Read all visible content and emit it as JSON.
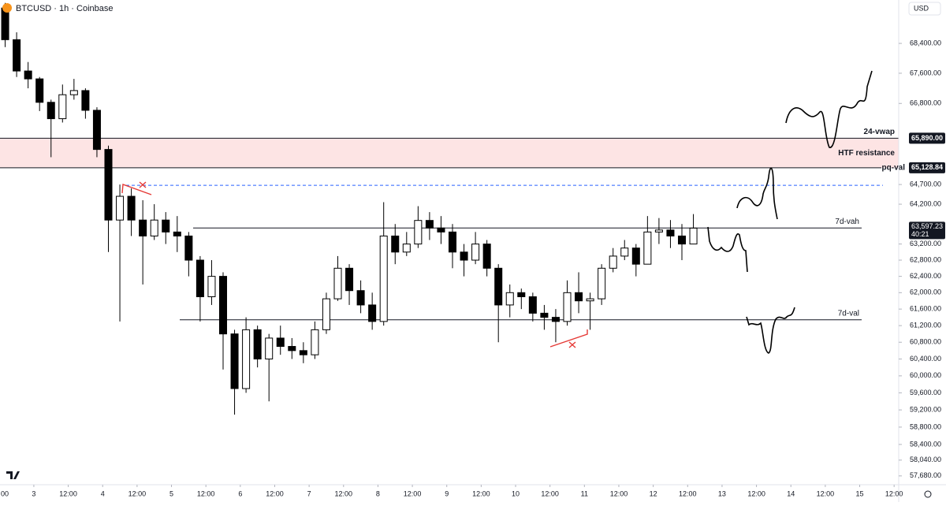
{
  "chart_data": {
    "type": "candlestick",
    "title": "BTCUSD · 1h · Coinbase",
    "currency": "USD",
    "x": [
      -12,
      -8,
      -4,
      0,
      4,
      8,
      12,
      16,
      20,
      24,
      28,
      32,
      36,
      40,
      44,
      48,
      52,
      56,
      60,
      64,
      68,
      72,
      76,
      80,
      84,
      88,
      92,
      96,
      100,
      104,
      108,
      112,
      116,
      120,
      124,
      128,
      132,
      136,
      140,
      144,
      148,
      152,
      156,
      160,
      164,
      168,
      172,
      176,
      180,
      184,
      188,
      192,
      196,
      200,
      204,
      208,
      212,
      216,
      220,
      224,
      228
    ],
    "open": [
      69360,
      68500,
      67660,
      67450,
      66830,
      66400,
      67030,
      67140,
      66620,
      65600,
      63800,
      64400,
      63800,
      63400,
      63800,
      63500,
      63400,
      62800,
      61900,
      62400,
      61000,
      59700,
      61100,
      60400,
      60900,
      60700,
      60600,
      60500,
      61100,
      61850,
      62600,
      62050,
      61700,
      61300,
      63400,
      63000,
      63200,
      63790,
      63600,
      63500,
      63000,
      62800,
      63200,
      62600,
      61700,
      62000,
      61900,
      61500,
      61400,
      61300,
      62000,
      61800,
      61850,
      62600,
      62900,
      63100,
      62700,
      63500,
      63550,
      63400,
      63200
    ],
    "high": [
      69500,
      68700,
      67900,
      67500,
      66900,
      67300,
      67450,
      67200,
      66700,
      65700,
      64700,
      64600,
      64300,
      64200,
      64000,
      63900,
      63500,
      62900,
      62800,
      62500,
      61100,
      61400,
      61200,
      61000,
      61200,
      60900,
      60800,
      61300,
      62000,
      62900,
      62700,
      62300,
      62000,
      64250,
      63700,
      63500,
      64150,
      64000,
      63900,
      63700,
      63200,
      63500,
      63300,
      62700,
      62200,
      62100,
      62000,
      61700,
      61600,
      62300,
      62500,
      62000,
      62700,
      63100,
      63300,
      63200,
      63900,
      63850,
      63800,
      63700,
      63950
    ],
    "low": [
      68300,
      67500,
      67200,
      66600,
      65400,
      66300,
      66900,
      66400,
      65400,
      63000,
      61300,
      63400,
      62200,
      63300,
      63200,
      63000,
      62400,
      61300,
      61700,
      60150,
      59090,
      59600,
      60200,
      59400,
      60500,
      60400,
      60300,
      60400,
      61000,
      61800,
      61700,
      61500,
      61100,
      61200,
      62700,
      62900,
      63100,
      63300,
      63200,
      62600,
      62400,
      62700,
      62400,
      60800,
      61400,
      61600,
      61300,
      61100,
      60800,
      61200,
      61500,
      61100,
      61700,
      62500,
      62800,
      62400,
      62700,
      63200,
      63100,
      62800,
      63300
    ],
    "close": [
      68500,
      67660,
      67450,
      66830,
      66400,
      67030,
      67140,
      66620,
      65600,
      63800,
      64400,
      63800,
      63400,
      63800,
      63500,
      63400,
      62800,
      61900,
      62400,
      61000,
      59700,
      61100,
      60400,
      60900,
      60700,
      60600,
      60500,
      61100,
      61850,
      62600,
      62050,
      61700,
      61300,
      63400,
      63000,
      63200,
      63790,
      63600,
      63500,
      63000,
      62800,
      63200,
      62600,
      61700,
      62000,
      61900,
      61500,
      61400,
      61300,
      62000,
      61800,
      61850,
      62600,
      62900,
      63100,
      62700,
      63500,
      63550,
      63400,
      63200,
      63597.23
    ],
    "up_color": "#ffffff",
    "down_color": "#000000",
    "wick_color": "#000000",
    "xlim": [
      -11.8,
      301.6
    ],
    "xticks": [
      {
        "value": -12,
        "label": "00"
      },
      {
        "value": 0,
        "label": "3"
      },
      {
        "value": 12,
        "label": "12:00"
      },
      {
        "value": 24,
        "label": "4"
      },
      {
        "value": 36,
        "label": "12:00"
      },
      {
        "value": 48,
        "label": "5"
      },
      {
        "value": 60,
        "label": "12:00"
      },
      {
        "value": 72,
        "label": "6"
      },
      {
        "value": 84,
        "label": "12:00"
      },
      {
        "value": 96,
        "label": "7"
      },
      {
        "value": 108,
        "label": "12:00"
      },
      {
        "value": 120,
        "label": "8"
      },
      {
        "value": 132,
        "label": "12:00"
      },
      {
        "value": 144,
        "label": "9"
      },
      {
        "value": 156,
        "label": "12:00"
      },
      {
        "value": 168,
        "label": "10"
      },
      {
        "value": 180,
        "label": "12:00"
      },
      {
        "value": 192,
        "label": "11"
      },
      {
        "value": 204,
        "label": "12:00"
      },
      {
        "value": 216,
        "label": "12"
      },
      {
        "value": 228,
        "label": "12:00"
      },
      {
        "value": 240,
        "label": "13"
      },
      {
        "value": 252,
        "label": "12:00"
      },
      {
        "value": 264,
        "label": "14"
      },
      {
        "value": 276,
        "label": "12:00"
      },
      {
        "value": 288,
        "label": "15"
      },
      {
        "value": 300,
        "label": "12:00"
      }
    ],
    "ylim": [
      57480,
      69580
    ],
    "log_scale": true,
    "grid": false,
    "yticks": [
      {
        "value": 68400,
        "label": "68,400.00"
      },
      {
        "value": 67600,
        "label": "67,600.00"
      },
      {
        "value": 66800,
        "label": "66,800.00"
      },
      {
        "value": 64700,
        "label": "64,700.00"
      },
      {
        "value": 64200,
        "label": "64,200.00"
      },
      {
        "value": 63200,
        "label": "63,200.00"
      },
      {
        "value": 62800,
        "label": "62,800.00"
      },
      {
        "value": 62400,
        "label": "62,400.00"
      },
      {
        "value": 62000,
        "label": "62,000.00"
      },
      {
        "value": 61600,
        "label": "61,600.00"
      },
      {
        "value": 61200,
        "label": "61,200.00"
      },
      {
        "value": 60800,
        "label": "60,800.00"
      },
      {
        "value": 60400,
        "label": "60,400.00"
      },
      {
        "value": 60000,
        "label": "60,000.00"
      },
      {
        "value": 59600,
        "label": "59,600.00"
      },
      {
        "value": 59200,
        "label": "59,200.00"
      },
      {
        "value": 58800,
        "label": "58,800.00"
      },
      {
        "value": 58400,
        "label": "58,400.00"
      },
      {
        "value": 58040,
        "label": "58,040.00"
      },
      {
        "value": 57680,
        "label": "57,680.00"
      }
    ],
    "levels": [
      {
        "label": "24-vwap",
        "value": 65890,
        "price_label": "65,890.00"
      },
      {
        "label": "pq-val",
        "value": 65128.84,
        "price_label": "65,128.84"
      },
      {
        "label": "7d-vah",
        "value": 63600
      },
      {
        "label": "7d-val",
        "value": 61340
      }
    ],
    "zone": {
      "label": "HTF resistance",
      "from": 65128.84,
      "to": 65890
    },
    "dashed_level": 64680,
    "last_price": {
      "value": 63597.23,
      "label": "63,597.23",
      "countdown": "40:21"
    }
  }
}
